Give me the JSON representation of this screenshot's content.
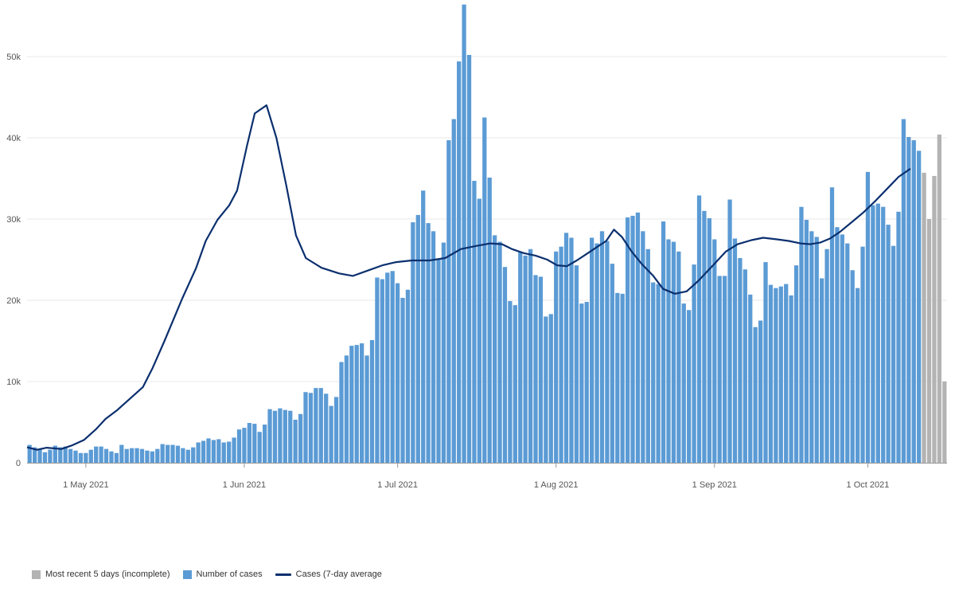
{
  "colors": {
    "bar": "#5b9bd5",
    "incomplete": "#b3b3b3",
    "average": "#0b2f6e",
    "grid": "#e8e8e8",
    "axis": "#999999"
  },
  "chart_data": {
    "type": "bar",
    "x_start": "2021-04-20",
    "x_labels": [
      {
        "date": "2021-05-01",
        "label": "1 May 2021"
      },
      {
        "date": "2021-06-01",
        "label": "1 Jun 2021"
      },
      {
        "date": "2021-07-01",
        "label": "1 Jul 2021"
      },
      {
        "date": "2021-08-01",
        "label": "1 Aug 2021"
      },
      {
        "date": "2021-09-01",
        "label": "1 Sep 2021"
      },
      {
        "date": "2021-10-01",
        "label": "1 Oct 2021"
      }
    ],
    "ylim": [
      0,
      55000
    ],
    "yticks": [
      {
        "value": 0,
        "label": "0"
      },
      {
        "value": 10000,
        "label": "10k"
      },
      {
        "value": 20000,
        "label": "20k"
      },
      {
        "value": 30000,
        "label": "30k"
      },
      {
        "value": 40000,
        "label": "40k"
      },
      {
        "value": 50000,
        "label": "50k"
      }
    ],
    "grid": true,
    "series": [
      {
        "name": "Number of cases",
        "kind": "bar",
        "values": [
          2200,
          1900,
          1700,
          1300,
          1600,
          2100,
          1900,
          2000,
          1700,
          1500,
          1200,
          1200,
          1600,
          2000,
          2000,
          1700,
          1400,
          1200,
          2200,
          1700,
          1800,
          1800,
          1700,
          1500,
          1400,
          1700,
          2300,
          2200,
          2200,
          2100,
          1800,
          1600,
          1900,
          2500,
          2700,
          3000,
          2800,
          2900,
          2500,
          2600,
          3100,
          4100,
          4300,
          4900,
          4800,
          3800,
          4700,
          6600,
          6400,
          6700,
          6500,
          6400,
          5300,
          6000,
          8700,
          8600,
          9200,
          9200,
          8500,
          7000,
          8100,
          12400,
          13200,
          14400,
          14500,
          14700,
          13200,
          15100,
          22800,
          22600,
          23400,
          23600,
          22100,
          20300,
          21300,
          29600,
          30500,
          33500,
          29500,
          28500,
          25000,
          27100,
          39700,
          42300,
          49400,
          56400,
          50200,
          34700,
          32500,
          42500,
          35100,
          28000,
          27200,
          24100,
          19900,
          19400,
          25900,
          25500,
          26300,
          23100,
          22900,
          18000,
          18300,
          26000,
          26600,
          28300,
          27700,
          24300,
          19600,
          19800,
          27700,
          27000,
          28500,
          27300,
          24500,
          20900,
          20800,
          30200,
          30400,
          30800,
          28500,
          26300,
          22200,
          22000,
          29700,
          27500,
          27200,
          26000,
          19600,
          18800,
          24400,
          32900,
          31000,
          30100,
          27500,
          23000,
          23000,
          32400,
          27600,
          25200,
          23800,
          20700,
          16700,
          17500,
          24700,
          21900,
          21500,
          21700,
          22000,
          20600,
          24300,
          31500,
          29900,
          28500,
          27800,
          22700,
          26300,
          33900,
          29000,
          28100,
          27000,
          23700,
          21500,
          26600,
          35800,
          31700,
          31900,
          31500,
          29300,
          26700,
          30900,
          42300,
          40100,
          39700,
          38400,
          35700,
          30000,
          35300,
          40400,
          10000
        ],
        "incomplete_last": 5
      },
      {
        "name": "Cases (7-day average",
        "kind": "line",
        "points": [
          [
            0,
            1900
          ],
          [
            10,
            1600
          ],
          [
            20,
            1850
          ],
          [
            35,
            1700
          ],
          [
            45,
            2100
          ],
          [
            58,
            2800
          ],
          [
            70,
            4100
          ],
          [
            80,
            5400
          ],
          [
            92,
            6500
          ],
          [
            104,
            7800
          ],
          [
            118,
            9300
          ],
          [
            128,
            11700
          ],
          [
            140,
            15000
          ],
          [
            158,
            20200
          ],
          [
            172,
            23900
          ],
          [
            182,
            27300
          ],
          [
            194,
            29900
          ],
          [
            206,
            31700
          ],
          [
            214,
            33500
          ],
          [
            224,
            39000
          ],
          [
            232,
            43000
          ],
          [
            244,
            44000
          ],
          [
            254,
            40000
          ],
          [
            264,
            34200
          ],
          [
            274,
            28000
          ],
          [
            284,
            25200
          ],
          [
            300,
            24000
          ],
          [
            318,
            23300
          ],
          [
            332,
            23000
          ],
          [
            348,
            23700
          ],
          [
            362,
            24300
          ],
          [
            376,
            24700
          ],
          [
            392,
            24900
          ],
          [
            410,
            24900
          ],
          [
            426,
            25200
          ],
          [
            442,
            26300
          ],
          [
            458,
            26700
          ],
          [
            472,
            27000
          ],
          [
            484,
            26900
          ],
          [
            494,
            26300
          ],
          [
            506,
            25800
          ],
          [
            518,
            25500
          ],
          [
            530,
            25000
          ],
          [
            540,
            24300
          ],
          [
            550,
            24200
          ],
          [
            560,
            24900
          ],
          [
            570,
            25700
          ],
          [
            580,
            26500
          ],
          [
            590,
            27300
          ],
          [
            598,
            28700
          ],
          [
            606,
            27800
          ],
          [
            616,
            26000
          ],
          [
            626,
            24500
          ],
          [
            638,
            23000
          ],
          [
            648,
            21400
          ],
          [
            660,
            20800
          ],
          [
            672,
            21100
          ],
          [
            684,
            22400
          ],
          [
            698,
            24200
          ],
          [
            712,
            26000
          ],
          [
            724,
            26900
          ],
          [
            738,
            27400
          ],
          [
            750,
            27700
          ],
          [
            764,
            27500
          ],
          [
            776,
            27300
          ],
          [
            788,
            27000
          ],
          [
            798,
            26900
          ],
          [
            808,
            27100
          ],
          [
            818,
            27600
          ],
          [
            828,
            28400
          ],
          [
            840,
            29600
          ],
          [
            852,
            30800
          ],
          [
            864,
            32200
          ],
          [
            876,
            33700
          ],
          [
            888,
            35200
          ],
          [
            900,
            36200
          ]
        ]
      }
    ],
    "legend": [
      {
        "label": "Most recent 5 days (incomplete)",
        "kind": "box",
        "color": "#b3b3b3"
      },
      {
        "label": "Number of cases",
        "kind": "box",
        "color": "#5b9bd5"
      },
      {
        "label": "Cases (7-day average",
        "kind": "line",
        "color": "#0b2f6e"
      }
    ],
    "legend_position": "bottom-left"
  }
}
